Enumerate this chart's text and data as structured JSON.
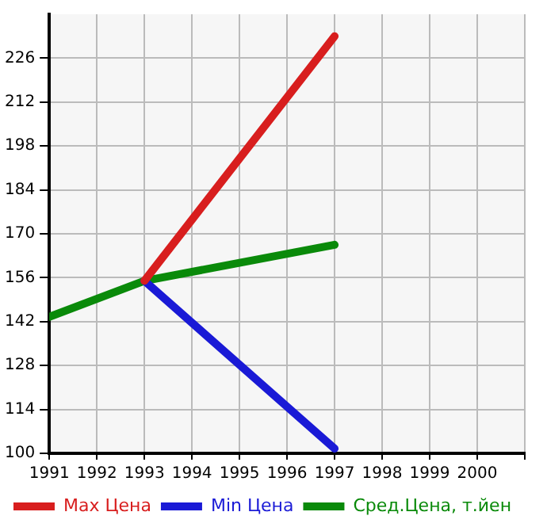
{
  "chart_data": {
    "type": "line",
    "x": [
      1991,
      1993,
      1997
    ],
    "series": [
      {
        "name": "Max Цена",
        "color": "#d81e1e",
        "values": [
          null,
          155,
          233
        ]
      },
      {
        "name": "Min Цена",
        "color": "#1a1ad6",
        "values": [
          null,
          155,
          101.5
        ]
      },
      {
        "name": "Сред.Цена, т.йен",
        "color": "#0a8a0a",
        "values": [
          143.5,
          155,
          166.5
        ]
      }
    ],
    "xlim": [
      1991,
      2001
    ],
    "xticks": [
      1991,
      1992,
      1993,
      1994,
      1995,
      1996,
      1997,
      1998,
      1999,
      2000,
      {
        "value": 2001,
        "label": null
      }
    ],
    "ylim": [
      100,
      240
    ],
    "yticks": [
      100,
      114,
      128,
      142,
      156,
      170,
      184,
      198,
      212,
      226
    ],
    "grid": true,
    "legend": "bottom",
    "marker": "none",
    "line_style": "solid"
  }
}
